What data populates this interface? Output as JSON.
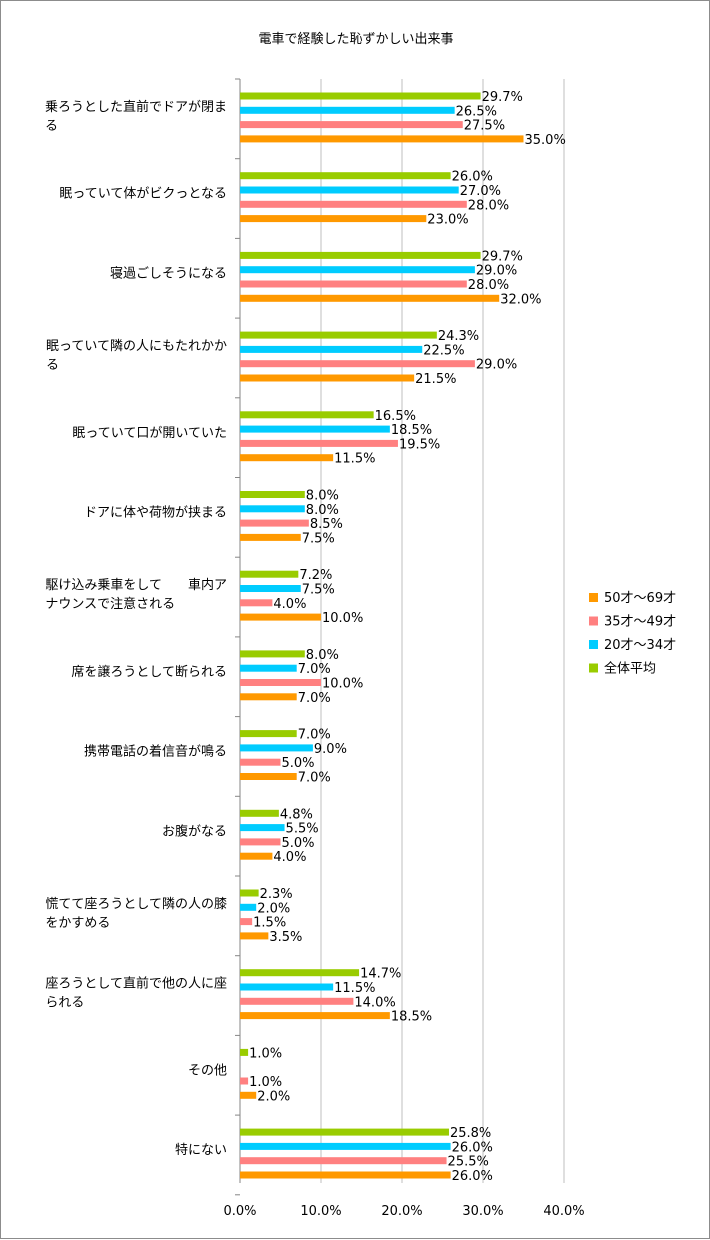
{
  "chart_data": {
    "type": "bar",
    "orientation": "horizontal",
    "title": "電車で経験した恥ずかしい出来事",
    "categories": [
      [
        "乗ろうとした直前でドアが閉ま",
        "る"
      ],
      [
        "眠っていて体がビクっとなる"
      ],
      [
        "寝過ごしそうになる"
      ],
      [
        "眠っていて隣の人にもたれかか",
        "る"
      ],
      [
        "眠っていて口が開いていた"
      ],
      [
        "ドアに体や荷物が挟まる"
      ],
      [
        "駆け込み乗車をして　　車内ア",
        "ナウンスで注意される"
      ],
      [
        "席を譲ろうとして断られる"
      ],
      [
        "携帯電話の着信音が鳴る"
      ],
      [
        "お腹がなる"
      ],
      [
        "慌てて座ろうとして隣の人の膝",
        "をかすめる"
      ],
      [
        "座ろうとして直前で他の人に座",
        "られる"
      ],
      [
        "その他"
      ],
      [
        "特にない"
      ]
    ],
    "series": [
      {
        "name": "全体平均",
        "color": "#99cc00",
        "values": [
          29.7,
          26.0,
          29.7,
          24.3,
          16.5,
          8.0,
          7.2,
          8.0,
          7.0,
          4.8,
          2.3,
          14.7,
          1.0,
          25.8
        ]
      },
      {
        "name": "20才～34才",
        "color": "#00ccff",
        "values": [
          26.5,
          27.0,
          29.0,
          22.5,
          18.5,
          8.0,
          7.5,
          7.0,
          9.0,
          5.5,
          2.0,
          11.5,
          null,
          26.0
        ]
      },
      {
        "name": "35才～49才",
        "color": "#ff8080",
        "values": [
          27.5,
          28.0,
          28.0,
          29.0,
          19.5,
          8.5,
          4.0,
          10.0,
          5.0,
          5.0,
          1.5,
          14.0,
          1.0,
          25.5
        ]
      },
      {
        "name": "50才～69才",
        "color": "#ff9900",
        "values": [
          35.0,
          23.0,
          32.0,
          21.5,
          11.5,
          7.5,
          10.0,
          7.0,
          7.0,
          4.0,
          3.5,
          18.5,
          2.0,
          26.0
        ]
      }
    ],
    "xlim": [
      0,
      40
    ],
    "xticks": [
      "0.0%",
      "10.0%",
      "20.0%",
      "30.0%",
      "40.0%"
    ],
    "value_suffix": "%",
    "grid": "vertical",
    "legend_placement": "right",
    "legend_order": [
      "50才～69才",
      "35才～49才",
      "20才～34才",
      "全体平均"
    ]
  }
}
